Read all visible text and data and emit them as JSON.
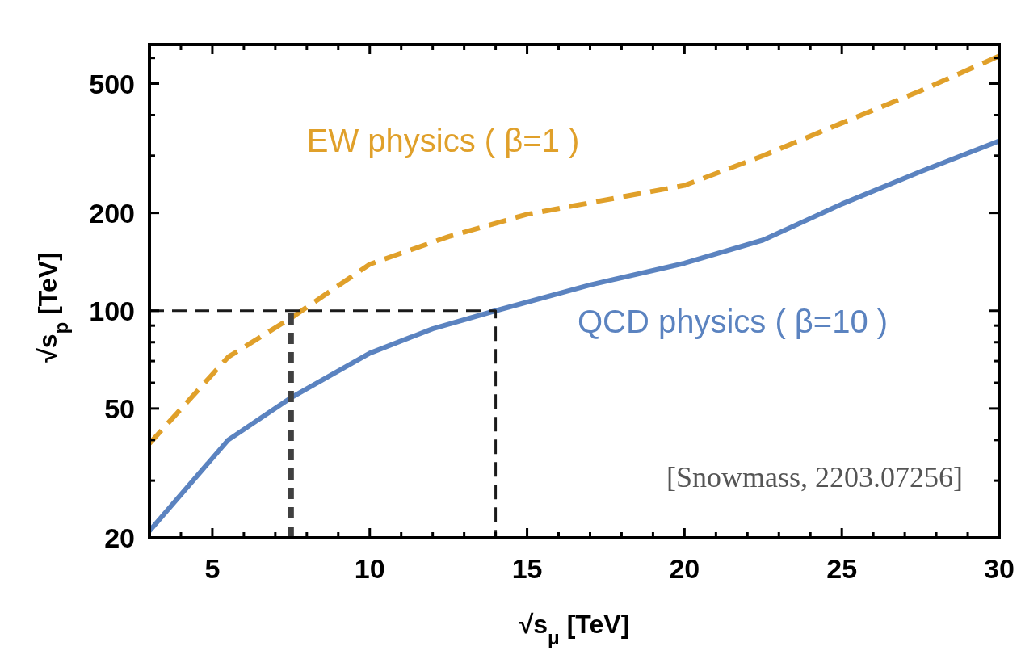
{
  "chart_data": {
    "type": "line",
    "xlabel": "√s$_{μ}$  [TeV]",
    "ylabel": "√s$_{p}$  [TeV]",
    "annotations": [
      "[Snowmass, 2203.07256]"
    ],
    "log": "y",
    "grid": false,
    "xlim": [
      3,
      30
    ],
    "ylim": [
      20,
      660
    ],
    "xticks": [
      {
        "value": 3,
        "label": null
      },
      {
        "value": 4,
        "label": null
      },
      5,
      {
        "value": 6,
        "label": null
      },
      {
        "value": 7,
        "label": null
      },
      {
        "value": 8,
        "label": null
      },
      {
        "value": 9,
        "label": null
      },
      10,
      {
        "value": 11,
        "label": null
      },
      {
        "value": 12,
        "label": null
      },
      {
        "value": 13,
        "label": null
      },
      {
        "value": 14,
        "label": null
      },
      15,
      {
        "value": 16,
        "label": null
      },
      {
        "value": 17,
        "label": null
      },
      {
        "value": 18,
        "label": null
      },
      {
        "value": 19,
        "label": null
      },
      20,
      {
        "value": 21,
        "label": null
      },
      {
        "value": 22,
        "label": null
      },
      {
        "value": 23,
        "label": null
      },
      {
        "value": 24,
        "label": null
      },
      25,
      {
        "value": 26,
        "label": null
      },
      {
        "value": 27,
        "label": null
      },
      {
        "value": 28,
        "label": null
      },
      {
        "value": 29,
        "label": null
      },
      30
    ],
    "yticks": [
      20,
      {
        "value": 30,
        "label": null
      },
      {
        "value": 40,
        "label": null
      },
      50,
      {
        "value": 60,
        "label": null
      },
      {
        "value": 70,
        "label": null
      },
      {
        "value": 80,
        "label": null
      },
      {
        "value": 90,
        "label": null
      },
      100,
      200,
      {
        "value": 300,
        "label": null
      },
      {
        "value": 400,
        "label": null
      },
      500,
      {
        "value": 600,
        "label": null
      }
    ],
    "series": [
      {
        "name": "EW physics ( β=1 )",
        "color": "#e0a02a",
        "line_style": "dashed",
        "x": [
          3,
          5.5,
          7.5,
          10,
          12.5,
          15,
          20,
          22.5,
          25,
          27.5,
          30
        ],
        "values": [
          39,
          72,
          95,
          139,
          169,
          198,
          243,
          300,
          378,
          475,
          608
        ]
      },
      {
        "name": "QCD physics ( β=10 )",
        "color": "#5b83c0",
        "line_style": "solid",
        "x": [
          3,
          5.5,
          7.5,
          10,
          12,
          14,
          17,
          20,
          22.5,
          25,
          27.5,
          30
        ],
        "values": [
          21,
          40,
          54,
          74,
          88,
          100,
          120,
          140,
          165,
          213,
          268,
          333
        ]
      },
      {
        "color": "#1a1a1a",
        "line_style": "dashed",
        "x": [
          3,
          14,
          14
        ],
        "values": [
          100,
          100,
          20
        ]
      },
      {
        "color": "#404040",
        "line_style": "dotted",
        "x": [
          7.5,
          7.5
        ],
        "values": [
          20,
          100
        ]
      }
    ]
  }
}
